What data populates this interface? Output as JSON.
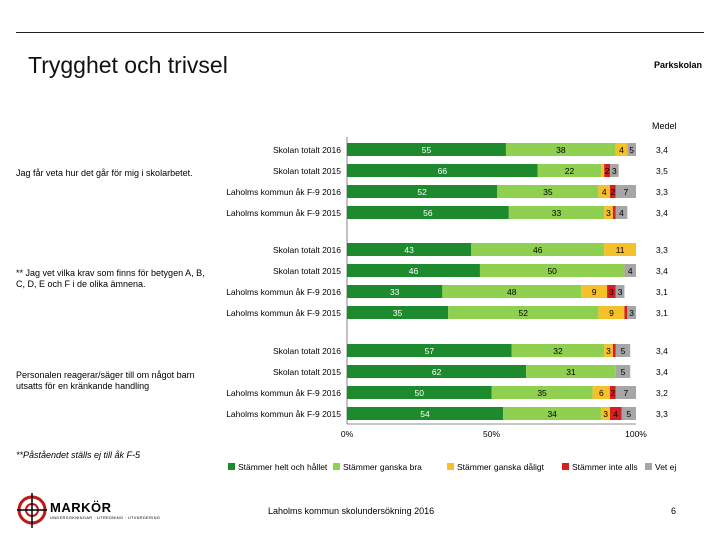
{
  "header": {
    "title": "Trygghet och trivsel",
    "school": "Parkskolan",
    "medel_label": "Medel"
  },
  "statements": [
    "Jag får veta hur det går för mig i skolarbetet.",
    "** Jag vet vilka krav som finns för betygen A, B, C, D, E och F i de olika ämnena.",
    "Personalen reagerar/säger till om något barn utsatts för en kränkande handling"
  ],
  "footnote": "**Påståendet ställs ej till åk F-5",
  "footer": {
    "survey": "Laholms kommun skolundersökning 2016",
    "page": "6"
  },
  "logo": {
    "name": "MARKÖR",
    "sub": "UNDERSÖKNINGAR · UTREDNING · UTVÄRDERING"
  },
  "colors": {
    "Stämmer helt och hållet": "#1e8a2e",
    "Stämmer ganska bra": "#90d050",
    "Stämmer ganska dåligt": "#f4c12a",
    "Stämmer inte alls": "#d42020",
    "Vet ej": "#a6a6a6"
  },
  "chart_data": {
    "type": "bar",
    "orientation": "horizontal",
    "stacked": true,
    "xlim": [
      0,
      100
    ],
    "xticks": [
      "0%",
      "50%",
      "100%"
    ],
    "series_names": [
      "Stämmer helt och hållet",
      "Stämmer ganska bra",
      "Stämmer ganska dåligt",
      "Stämmer inte alls",
      "Vet ej"
    ],
    "groups": [
      {
        "statement_index": 0,
        "rows": [
          {
            "label": "Skolan totalt 2016",
            "values": [
              55,
              38,
              4,
              0,
              5
            ],
            "medel": "3,4"
          },
          {
            "label": "Skolan totalt 2015",
            "values": [
              66,
              22,
              1,
              2,
              3
            ],
            "medel": "3,5"
          },
          {
            "label": "Laholms kommun åk F-9 2016",
            "values": [
              52,
              35,
              4,
              2,
              7
            ],
            "medel": "3,3"
          },
          {
            "label": "Laholms kommun åk F-9 2015",
            "values": [
              56,
              33,
              3,
              1,
              4
            ],
            "medel": "3,4"
          }
        ]
      },
      {
        "statement_index": 1,
        "rows": [
          {
            "label": "Skolan totalt 2016",
            "values": [
              43,
              46,
              11,
              0,
              1
            ],
            "medel": "3,3"
          },
          {
            "label": "Skolan totalt 2015",
            "values": [
              46,
              50,
              0,
              0,
              4
            ],
            "medel": "3,4"
          },
          {
            "label": "Laholms kommun åk F-9 2016",
            "values": [
              33,
              48,
              9,
              3,
              3
            ],
            "medel": "3,1"
          },
          {
            "label": "Laholms kommun åk F-9 2015",
            "values": [
              35,
              52,
              9,
              1,
              3
            ],
            "medel": "3,1"
          }
        ]
      },
      {
        "statement_index": 2,
        "rows": [
          {
            "label": "Skolan totalt 2016",
            "values": [
              57,
              32,
              3,
              1,
              5
            ],
            "medel": "3,4"
          },
          {
            "label": "Skolan totalt 2015",
            "values": [
              62,
              31,
              0,
              0,
              5
            ],
            "medel": "3,4"
          },
          {
            "label": "Laholms kommun åk F-9 2016",
            "values": [
              50,
              35,
              6,
              2,
              7
            ],
            "medel": "3,2"
          },
          {
            "label": "Laholms kommun åk F-9 2015",
            "values": [
              54,
              34,
              3,
              4,
              5
            ],
            "medel": "3,3"
          }
        ]
      }
    ]
  }
}
